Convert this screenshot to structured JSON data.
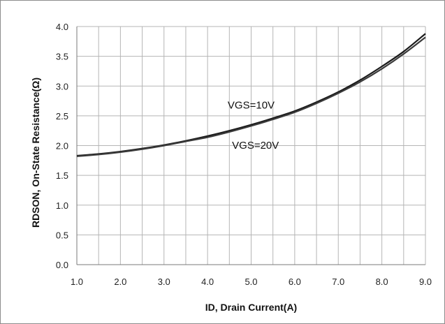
{
  "chart_data": {
    "type": "line",
    "title": "",
    "xlabel": "ID, Drain Current(A)",
    "ylabel": "RDSON, On-State Resistance(Ω)",
    "xlim": [
      1.0,
      9.0
    ],
    "ylim": [
      0.0,
      4.0
    ],
    "x_ticks": [
      "1.0",
      "2.0",
      "3.0",
      "4.0",
      "5.0",
      "6.0",
      "7.0",
      "8.0",
      "9.0"
    ],
    "y_ticks": [
      "0.0",
      "0.5",
      "1.0",
      "1.5",
      "2.0",
      "2.5",
      "3.0",
      "3.5",
      "4.0"
    ],
    "grid": true,
    "legend": "none",
    "series": [
      {
        "name": "VGS=10V",
        "color": "#1a1a1a",
        "x": [
          1.0,
          1.5,
          2.0,
          2.5,
          3.0,
          3.5,
          4.0,
          4.5,
          5.0,
          5.5,
          6.0,
          6.5,
          7.0,
          7.5,
          8.0,
          8.5,
          9.0
        ],
        "y": [
          1.83,
          1.86,
          1.9,
          1.95,
          2.01,
          2.08,
          2.16,
          2.25,
          2.35,
          2.46,
          2.58,
          2.73,
          2.9,
          3.1,
          3.33,
          3.58,
          3.88
        ]
      },
      {
        "name": "VGS=20V",
        "color": "#3a3a3a",
        "x": [
          1.0,
          1.5,
          2.0,
          2.5,
          3.0,
          3.5,
          4.0,
          4.5,
          5.0,
          5.5,
          6.0,
          6.5,
          7.0,
          7.5,
          8.0,
          8.5,
          9.0
        ],
        "y": [
          1.82,
          1.85,
          1.89,
          1.94,
          2.0,
          2.07,
          2.14,
          2.23,
          2.33,
          2.44,
          2.56,
          2.71,
          2.88,
          3.07,
          3.29,
          3.54,
          3.82
        ]
      }
    ],
    "annotations": [
      {
        "text": "VGS=10V",
        "x": 5.0,
        "y": 2.62
      },
      {
        "text": "VGS=20V",
        "x": 5.1,
        "y": 1.95
      }
    ]
  }
}
